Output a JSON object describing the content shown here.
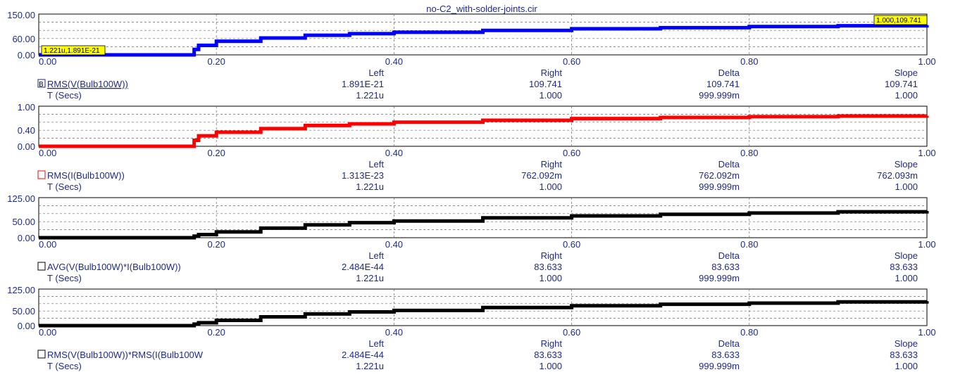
{
  "window_title": "no-C2_with-solder-joints.cir",
  "cursor_columns": [
    "Left",
    "Right",
    "Delta",
    "Slope"
  ],
  "chart_data": [
    {
      "type": "line",
      "name": "RMS(V(Bulb100W))",
      "color": "#0000ff",
      "xlim": [
        0,
        1
      ],
      "ylim": [
        0,
        150
      ],
      "yticks": [
        "0.00",
        "60.00",
        "150.00"
      ],
      "xticks": [
        "0.00",
        "0.20",
        "0.40",
        "0.60",
        "0.80",
        "1.00"
      ],
      "grid": true,
      "x": [
        0,
        0.17,
        0.175,
        0.18,
        0.2,
        0.25,
        0.3,
        0.35,
        0.4,
        0.5,
        0.6,
        0.7,
        0.8,
        0.9,
        1.0
      ],
      "y": [
        0,
        0,
        20,
        35,
        50,
        62,
        72,
        78,
        83,
        90,
        96,
        100,
        104,
        107,
        109.741
      ],
      "cursor_labels": [
        "1.221u,1.891E-21",
        "1.000,109.741"
      ],
      "trace_label": "RMS(V(Bulb100W))",
      "trace_values": [
        "1.891E-21",
        "109.741",
        "109.741",
        "109.741"
      ],
      "x_label": "T (Secs)",
      "x_values": [
        "1.221u",
        "1.000",
        "999.999m",
        "1.000"
      ],
      "selected": true
    },
    {
      "type": "line",
      "name": "RMS(I(Bulb100W))",
      "color": "#ff0000",
      "xlim": [
        0,
        1
      ],
      "ylim": [
        0,
        1
      ],
      "yticks": [
        "0.00",
        "0.40",
        "1.00"
      ],
      "xticks": [
        "0.00",
        "0.20",
        "0.40",
        "0.60",
        "0.80",
        "1.00"
      ],
      "grid": true,
      "x": [
        0,
        0.17,
        0.175,
        0.18,
        0.2,
        0.25,
        0.3,
        0.35,
        0.4,
        0.5,
        0.6,
        0.7,
        0.8,
        0.9,
        1.0
      ],
      "y": [
        0,
        0,
        0.15,
        0.26,
        0.35,
        0.44,
        0.52,
        0.56,
        0.6,
        0.65,
        0.69,
        0.72,
        0.74,
        0.755,
        0.762
      ],
      "trace_label": "RMS(I(Bulb100W))",
      "trace_values": [
        "1.313E-23",
        "762.092m",
        "762.092m",
        "762.093m"
      ],
      "x_label": "T (Secs)",
      "x_values": [
        "1.221u",
        "1.000",
        "999.999m",
        "1.000"
      ],
      "selected": false
    },
    {
      "type": "line",
      "name": "AVG(V(Bulb100W)*I(Bulb100W))",
      "color": "#000000",
      "xlim": [
        0,
        1
      ],
      "ylim": [
        0,
        125
      ],
      "yticks": [
        "0.00",
        "50.00",
        "125.00"
      ],
      "xticks": [
        "0.00",
        "0.20",
        "0.40",
        "0.60",
        "0.80",
        "1.00"
      ],
      "grid": true,
      "x": [
        0,
        0.17,
        0.175,
        0.18,
        0.2,
        0.25,
        0.3,
        0.35,
        0.4,
        0.5,
        0.6,
        0.7,
        0.8,
        0.9,
        1.0
      ],
      "y": [
        0,
        0,
        5,
        10,
        18,
        30,
        40,
        47,
        52,
        62,
        68,
        73,
        77,
        81,
        83.633
      ],
      "trace_label": "AVG(V(Bulb100W)*I(Bulb100W))",
      "trace_values": [
        "2.484E-44",
        "83.633",
        "83.633",
        "83.633"
      ],
      "x_label": "T (Secs)",
      "x_values": [
        "1.221u",
        "1.000",
        "999.999m",
        "1.000"
      ],
      "selected": false
    },
    {
      "type": "line",
      "name": "RMS(V(Bulb100W))*RMS(I(Bulb100W",
      "color": "#000000",
      "xlim": [
        0,
        1
      ],
      "ylim": [
        0,
        125
      ],
      "yticks": [
        "0.00",
        "50.00",
        "125.00"
      ],
      "xticks": [
        "0.00",
        "0.20",
        "0.40",
        "0.60",
        "0.80",
        "1.00"
      ],
      "grid": true,
      "x": [
        0,
        0.17,
        0.175,
        0.18,
        0.2,
        0.25,
        0.3,
        0.35,
        0.4,
        0.5,
        0.6,
        0.7,
        0.8,
        0.9,
        1.0
      ],
      "y": [
        0,
        0,
        5,
        10,
        18,
        30,
        40,
        47,
        52,
        62,
        68,
        73,
        77,
        81,
        83.633
      ],
      "trace_label": "RMS(V(Bulb100W))*RMS(I(Bulb100W",
      "trace_values": [
        "2.484E-44",
        "83.633",
        "83.633",
        "83.633"
      ],
      "x_label": "T (Secs)",
      "x_values": [
        "1.221u",
        "1.000",
        "999.999m",
        "1.000"
      ],
      "selected": false
    }
  ]
}
